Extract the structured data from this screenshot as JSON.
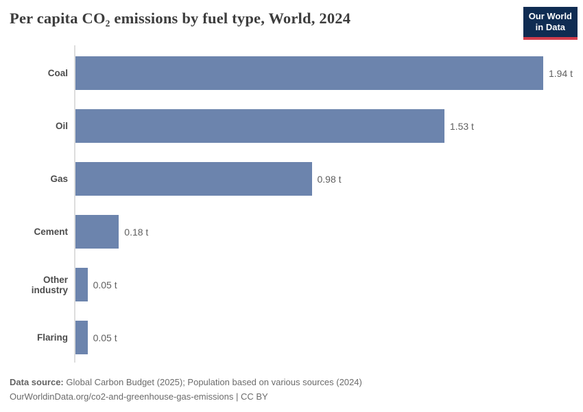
{
  "header": {
    "title": "Per capita CO₂ emissions by fuel type, World, 2024",
    "logo": {
      "line1": "Our World",
      "line2": "in Data"
    }
  },
  "chart_data": {
    "type": "bar",
    "orientation": "horizontal",
    "title": "Per capita CO₂ emissions by fuel type, World, 2024",
    "categories": [
      "Coal",
      "Oil",
      "Gas",
      "Cement",
      "Other industry",
      "Flaring"
    ],
    "values": [
      1.94,
      1.53,
      0.98,
      0.18,
      0.05,
      0.05
    ],
    "value_labels": [
      "1.94 t",
      "1.53 t",
      "0.98 t",
      "0.18 t",
      "0.05 t",
      "0.05 t"
    ],
    "unit": "t",
    "xlabel": "",
    "ylabel": "",
    "xlim": [
      0,
      1.94
    ],
    "grid": false,
    "legend": false,
    "bar_color": "#6c84ad",
    "axis_color": "#dddddd"
  },
  "footer": {
    "source_label": "Data source:",
    "source_text": "Global Carbon Budget (2025); Population based on various sources (2024)",
    "url_line": "OurWorldinData.org/co2-and-greenhouse-gas-emissions | CC BY"
  }
}
